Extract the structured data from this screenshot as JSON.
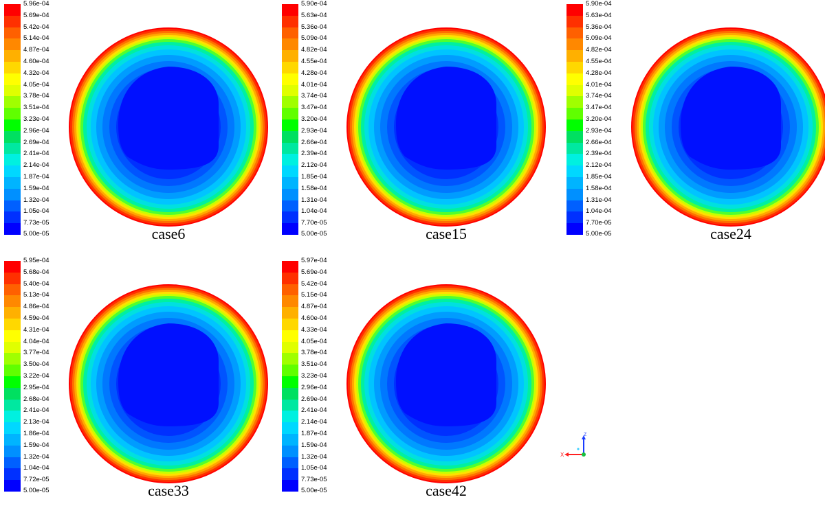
{
  "colormap": [
    "#0000ff",
    "#0030ff",
    "#0060ff",
    "#0090ff",
    "#00b4ff",
    "#00d8ff",
    "#00f0e0",
    "#00e8a0",
    "#00e060",
    "#00ff00",
    "#60ff00",
    "#a0ff00",
    "#e0ff00",
    "#ffff00",
    "#ffd800",
    "#ffb000",
    "#ff8800",
    "#ff6000",
    "#ff3000",
    "#ff0000"
  ],
  "panels": [
    {
      "name": "case6",
      "label": "case6",
      "ticks": [
        "5.96e-04",
        "5.69e-04",
        "5.42e-04",
        "5.14e-04",
        "4.87e-04",
        "4.60e-04",
        "4.32e-04",
        "4.05e-04",
        "3.78e-04",
        "3.51e-04",
        "3.23e-04",
        "2.96e-04",
        "2.69e-04",
        "2.41e-04",
        "2.14e-04",
        "1.87e-04",
        "1.59e-04",
        "1.32e-04",
        "1.05e-04",
        "7.73e-05",
        "5.00e-05"
      ]
    },
    {
      "name": "case15",
      "label": "case15",
      "ticks": [
        "5.90e-04",
        "5.63e-04",
        "5.36e-04",
        "5.09e-04",
        "4.82e-04",
        "4.55e-04",
        "4.28e-04",
        "4.01e-04",
        "3.74e-04",
        "3.47e-04",
        "3.20e-04",
        "2.93e-04",
        "2.66e-04",
        "2.39e-04",
        "2.12e-04",
        "1.85e-04",
        "1.58e-04",
        "1.31e-04",
        "1.04e-04",
        "7.70e-05",
        "5.00e-05"
      ]
    },
    {
      "name": "case24",
      "label": "case24",
      "ticks": [
        "5.90e-04",
        "5.63e-04",
        "5.36e-04",
        "5.09e-04",
        "4.82e-04",
        "4.55e-04",
        "4.28e-04",
        "4.01e-04",
        "3.74e-04",
        "3.47e-04",
        "3.20e-04",
        "2.93e-04",
        "2.66e-04",
        "2.39e-04",
        "2.12e-04",
        "1.85e-04",
        "1.58e-04",
        "1.31e-04",
        "1.04e-04",
        "7.70e-05",
        "5.00e-05"
      ]
    },
    {
      "name": "case33",
      "label": "case33",
      "ticks": [
        "5.95e-04",
        "5.68e-04",
        "5.40e-04",
        "5.13e-04",
        "4.86e-04",
        "4.59e-04",
        "4.31e-04",
        "4.04e-04",
        "3.77e-04",
        "3.50e-04",
        "3.22e-04",
        "2.95e-04",
        "2.68e-04",
        "2.41e-04",
        "2.13e-04",
        "1.86e-04",
        "1.59e-04",
        "1.32e-04",
        "1.04e-04",
        "7.72e-05",
        "5.00e-05"
      ]
    },
    {
      "name": "case42",
      "label": "case42",
      "ticks": [
        "5.97e-04",
        "5.69e-04",
        "5.42e-04",
        "5.15e-04",
        "4.87e-04",
        "4.60e-04",
        "4.33e-04",
        "4.05e-04",
        "3.78e-04",
        "3.51e-04",
        "3.23e-04",
        "2.96e-04",
        "2.69e-04",
        "2.41e-04",
        "2.14e-04",
        "1.87e-04",
        "1.59e-04",
        "1.32e-04",
        "1.05e-04",
        "7.73e-05",
        "5.00e-05"
      ]
    }
  ],
  "axes": {
    "z_label": "Z",
    "x_label": "X"
  }
}
